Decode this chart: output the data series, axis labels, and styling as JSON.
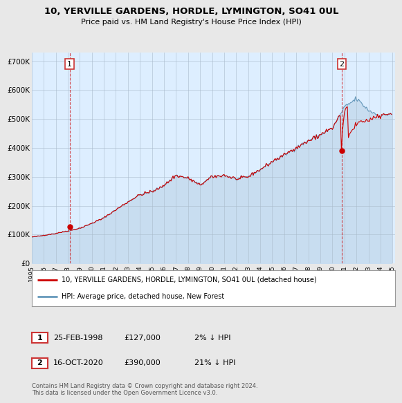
{
  "title": "10, YERVILLE GARDENS, HORDLE, LYMINGTON, SO41 0UL",
  "subtitle": "Price paid vs. HM Land Registry's House Price Index (HPI)",
  "legend_label_red": "10, YERVILLE GARDENS, HORDLE, LYMINGTON, SO41 0UL (detached house)",
  "legend_label_blue": "HPI: Average price, detached house, New Forest",
  "annotation1_label": "1",
  "annotation1_date": "25-FEB-1998",
  "annotation1_price": "£127,000",
  "annotation1_hpi": "2% ↓ HPI",
  "annotation2_label": "2",
  "annotation2_date": "16-OCT-2020",
  "annotation2_price": "£390,000",
  "annotation2_hpi": "21% ↓ HPI",
  "footnote": "Contains HM Land Registry data © Crown copyright and database right 2024.\nThis data is licensed under the Open Government Licence v3.0.",
  "ylim": [
    0,
    730000
  ],
  "yticks": [
    0,
    100000,
    200000,
    300000,
    400000,
    500000,
    600000,
    700000
  ],
  "ytick_labels": [
    "£0",
    "£100K",
    "£200K",
    "£300K",
    "£400K",
    "£500K",
    "£600K",
    "£700K"
  ],
  "bg_color": "#e8e8e8",
  "plot_bg_color": "#ddeeff",
  "red_color": "#cc0000",
  "blue_line_color": "#6699bb",
  "blue_fill_color": "#c8ddf0",
  "grid_color": "#aabbcc",
  "purchase1_x": 1998.15,
  "purchase1_y": 127000,
  "purchase2_x": 2020.79,
  "purchase2_y": 390000,
  "xlim_start": 1995.3,
  "xlim_end": 2025.2
}
